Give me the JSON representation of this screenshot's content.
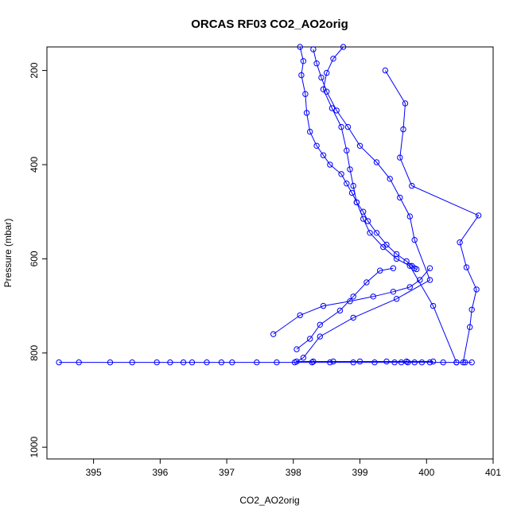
{
  "chart_data": {
    "type": "line",
    "title": "ORCAS RF03 CO2_AO2orig",
    "xlabel": "CO2_AO2orig",
    "ylabel": "Pressure (mbar)",
    "xlim": [
      394.3,
      401.0
    ],
    "ylim": [
      1025,
      150
    ],
    "y_reversed": true,
    "x_ticks": [
      395,
      396,
      397,
      398,
      399,
      400,
      401
    ],
    "y_ticks": [
      200,
      400,
      600,
      800,
      1000
    ],
    "grid": false,
    "line_color": "#0000ff",
    "marker": "open-circle",
    "series": [
      {
        "x": [
          398.1,
          398.15,
          398.12,
          398.18,
          398.2,
          398.25,
          398.35,
          398.45,
          398.55,
          398.72,
          398.8,
          398.88,
          398.95,
          399.05,
          399.12,
          399.25,
          399.4,
          399.55,
          399.7,
          399.78,
          399.82,
          399.85
        ],
        "y": [
          150,
          180,
          210,
          250,
          290,
          330,
          360,
          380,
          400,
          420,
          440,
          460,
          480,
          500,
          520,
          545,
          570,
          590,
          605,
          615,
          620,
          622
        ]
      },
      {
        "x": [
          399.38,
          399.68,
          399.65,
          399.6,
          399.78,
          400.78,
          400.5,
          400.6,
          400.75,
          400.68,
          400.65,
          400.55
        ],
        "y": [
          200,
          270,
          325,
          385,
          445,
          508,
          565,
          618,
          665,
          708,
          745,
          820
        ]
      },
      {
        "x": [
          398.3,
          398.35,
          398.42,
          398.5,
          398.65,
          398.82,
          399.0,
          399.25,
          399.45,
          399.6,
          399.75,
          399.82,
          400.05,
          399.55,
          398.9,
          398.4,
          398.15,
          398.05,
          398.3,
          398.6,
          399.0,
          399.4,
          399.7,
          400.1
        ],
        "y": [
          155,
          185,
          215,
          245,
          285,
          320,
          360,
          395,
          430,
          470,
          510,
          560,
          645,
          685,
          725,
          765,
          810,
          818,
          818,
          818,
          818,
          818,
          818,
          818
        ]
      },
      {
        "x": [
          397.7,
          398.1,
          398.45,
          398.85,
          399.2,
          399.5,
          399.75,
          399.9,
          400.05
        ],
        "y": [
          760,
          720,
          700,
          690,
          680,
          670,
          660,
          645,
          620
        ]
      },
      {
        "x": [
          398.05,
          398.25,
          398.4,
          398.7,
          398.9,
          399.1,
          399.3,
          399.5
        ],
        "y": [
          792,
          770,
          740,
          710,
          680,
          650,
          625,
          620
        ]
      },
      {
        "x": [
          394.48,
          394.78,
          395.25,
          395.58,
          395.95,
          396.15,
          396.35,
          396.48,
          396.7,
          396.92,
          397.08,
          397.45,
          397.75,
          398.02,
          398.28,
          398.55,
          398.9,
          399.22,
          399.52,
          399.62,
          399.72,
          399.82,
          399.93,
          400.05,
          400.25,
          400.45,
          400.58,
          400.68
        ],
        "y": [
          820,
          820,
          820,
          820,
          820,
          820,
          820,
          820,
          820,
          820,
          820,
          820,
          820,
          820,
          820,
          820,
          820,
          820,
          820,
          820,
          820,
          820,
          820,
          820,
          820,
          820,
          820,
          820
        ]
      },
      {
        "x": [
          398.75,
          398.6,
          398.5,
          398.45,
          398.58,
          398.72,
          398.8,
          398.85,
          398.9,
          398.95,
          399.05,
          399.15,
          399.35,
          399.55,
          399.75,
          400.1,
          400.45
        ],
        "y": [
          150,
          175,
          205,
          240,
          280,
          320,
          370,
          410,
          445,
          480,
          515,
          545,
          575,
          600,
          615,
          700,
          820
        ]
      }
    ]
  }
}
